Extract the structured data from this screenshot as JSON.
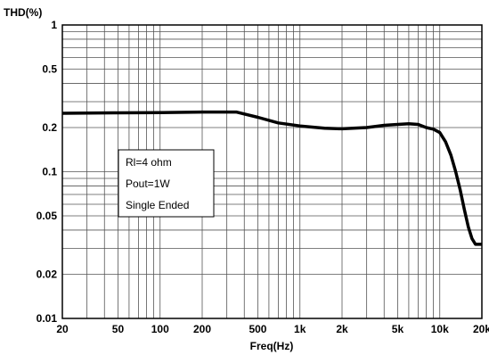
{
  "chart_data": {
    "type": "line",
    "xlabel": "Freq(Hz)",
    "ylabel": "THD(%)",
    "x_scale": "log",
    "y_scale": "log",
    "xlim": [
      20,
      20000
    ],
    "ylim": [
      0.01,
      1
    ],
    "grid": true,
    "x_ticks": [
      {
        "value": 20,
        "label": "20"
      },
      {
        "value": 50,
        "label": "50"
      },
      {
        "value": 100,
        "label": "100"
      },
      {
        "value": 200,
        "label": "200"
      },
      {
        "value": 500,
        "label": "500"
      },
      {
        "value": 1000,
        "label": "1k"
      },
      {
        "value": 2000,
        "label": "2k"
      },
      {
        "value": 5000,
        "label": "5k"
      },
      {
        "value": 10000,
        "label": "10k"
      },
      {
        "value": 20000,
        "label": "20k"
      }
    ],
    "y_ticks": [
      {
        "value": 1,
        "label": "1"
      },
      {
        "value": 0.5,
        "label": "0.5"
      },
      {
        "value": 0.2,
        "label": "0.2"
      },
      {
        "value": 0.1,
        "label": "0.1"
      },
      {
        "value": 0.05,
        "label": "0.05"
      },
      {
        "value": 0.02,
        "label": "0.02"
      },
      {
        "value": 0.01,
        "label": "0.01"
      }
    ],
    "annotations": [
      "Rl=4 ohm",
      "Pout=1W",
      "Single Ended"
    ],
    "series": [
      {
        "color": "#000000",
        "x": [
          20,
          50,
          100,
          200,
          350,
          500,
          700,
          1000,
          1500,
          2000,
          3000,
          4000,
          5000,
          6000,
          7000,
          8000,
          9000,
          10000,
          11000,
          12000,
          13000,
          14000,
          15000,
          16000,
          17000,
          18000,
          20000
        ],
        "y": [
          0.25,
          0.252,
          0.253,
          0.255,
          0.255,
          0.235,
          0.215,
          0.205,
          0.198,
          0.196,
          0.2,
          0.207,
          0.21,
          0.212,
          0.21,
          0.2,
          0.195,
          0.185,
          0.16,
          0.13,
          0.1,
          0.075,
          0.055,
          0.042,
          0.035,
          0.032,
          0.032
        ]
      }
    ]
  }
}
